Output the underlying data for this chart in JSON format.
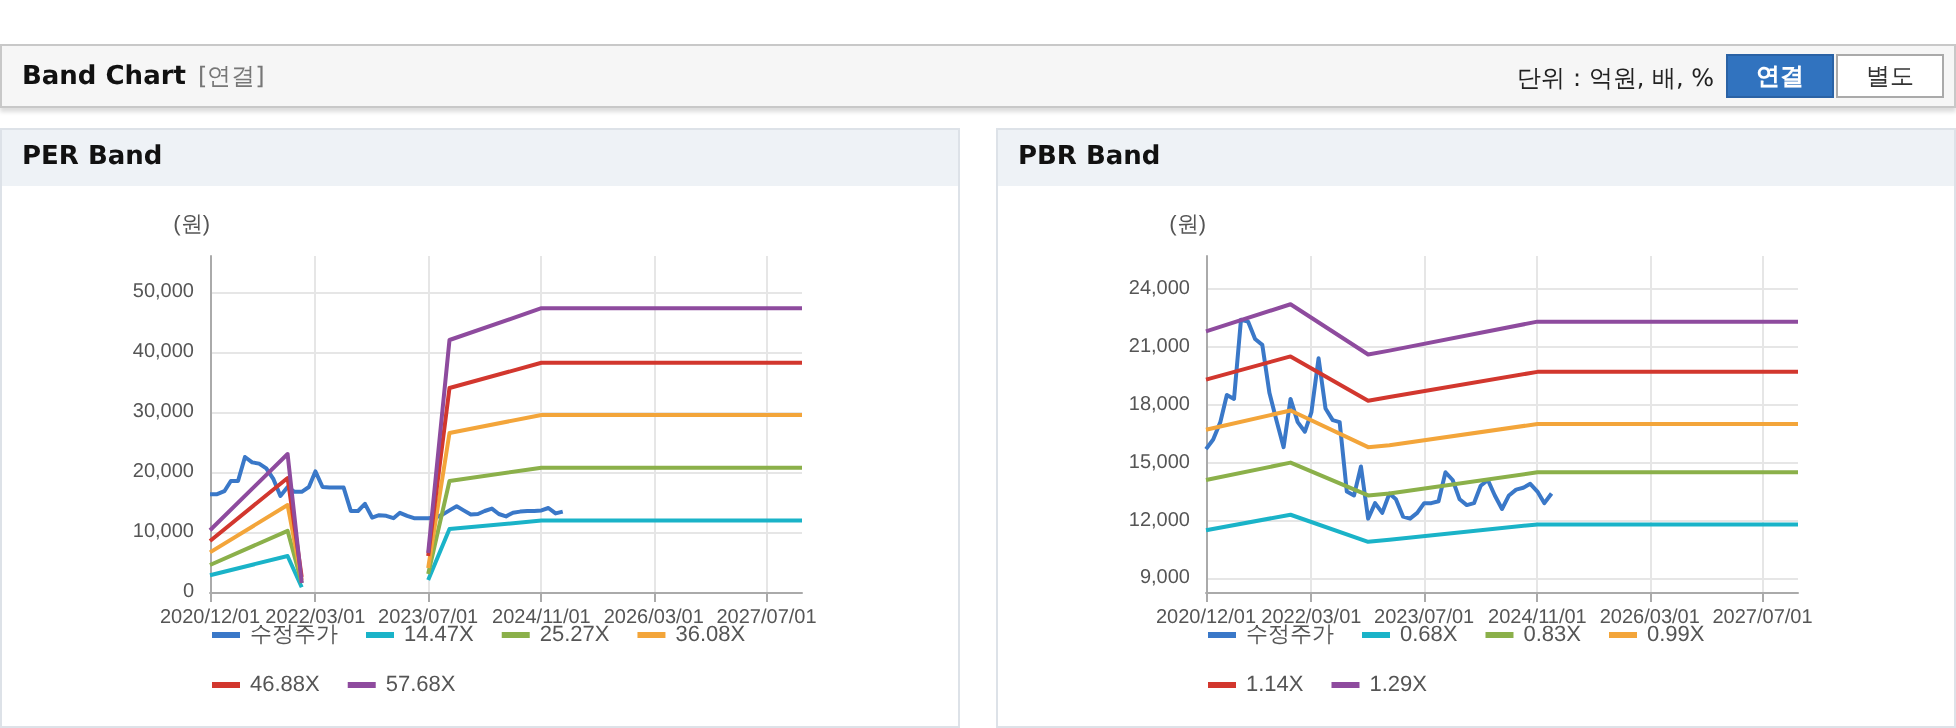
{
  "chart_data": [
    {
      "type": "other",
      "title": "Band Chart",
      "subtitle": "[연결]",
      "annotations": [
        "단위 : 억원, 배, %",
        "연결",
        "별도"
      ]
    },
    {
      "type": "line",
      "title": "PER Band",
      "ylabel": "(원)",
      "xlim": [
        "2020-12-01",
        "2027-12-01"
      ],
      "xticks": [
        {
          "value": "2020-12-01",
          "label": "2020/12/01"
        },
        {
          "value": "2022-03-01",
          "label": "2022/03/01"
        },
        {
          "value": "2023-07-01",
          "label": "2023/07/01"
        },
        {
          "value": "2024-11-01",
          "label": "2024/11/01"
        },
        {
          "value": "2026-03-01",
          "label": "2026/03/01"
        },
        {
          "value": "2027-07-01",
          "label": "2027/07/01"
        }
      ],
      "ylim": [
        0,
        56000
      ],
      "yticks": [
        {
          "value": 0,
          "label": "0"
        },
        {
          "value": 10000,
          "label": "10,000"
        },
        {
          "value": 20000,
          "label": "20,000"
        },
        {
          "value": 30000,
          "label": "30,000"
        },
        {
          "value": 40000,
          "label": "40,000"
        },
        {
          "value": 50000,
          "label": "50,000"
        }
      ],
      "grid": true,
      "legend": "bottom",
      "marker": "none",
      "series": [
        {
          "name": "수정주가",
          "color": "#3a78c8",
          "x": [
            "2020-12",
            "2021-01",
            "2021-02",
            "2021-03",
            "2021-04",
            "2021-05",
            "2021-06",
            "2021-07",
            "2021-08",
            "2021-09",
            "2021-10",
            "2021-11",
            "2021-12",
            "2022-01",
            "2022-02",
            "2022-03",
            "2022-04",
            "2022-05",
            "2022-06",
            "2022-07",
            "2022-08",
            "2022-09",
            "2022-10",
            "2022-11",
            "2022-12",
            "2023-01",
            "2023-02",
            "2023-03",
            "2023-04",
            "2023-05",
            "2023-06",
            "2023-07",
            "2023-08",
            "2023-09",
            "2023-10",
            "2023-11",
            "2023-12",
            "2024-01",
            "2024-02",
            "2024-03",
            "2024-04",
            "2024-05",
            "2024-06",
            "2024-07",
            "2024-08",
            "2024-09",
            "2024-10",
            "2024-11",
            "2024-12",
            "2025-01",
            "2025-02"
          ],
          "values": [
            16300,
            16300,
            16800,
            18500,
            18500,
            22500,
            21600,
            21400,
            20600,
            18800,
            16000,
            17500,
            16700,
            16700,
            17500,
            20100,
            17500,
            17400,
            17400,
            17400,
            13500,
            13500,
            14700,
            12400,
            12800,
            12700,
            12300,
            13200,
            12700,
            12300,
            12300,
            12300,
            12400,
            12900,
            13600,
            14300,
            13600,
            12900,
            13000,
            13500,
            13900,
            13000,
            12600,
            13200,
            13400,
            13500,
            13500,
            13600,
            14000,
            13100,
            13400
          ]
        },
        {
          "name": "14.47X",
          "color": "#1ab3c8",
          "x": [
            "2020-12",
            "2021-11",
            "2022-01",
            "2022-10",
            "2023-07",
            "2023-10",
            "2024-11",
            "2027-12"
          ],
          "values": [
            2800,
            6000,
            800,
            null,
            2000,
            10500,
            11900,
            11900
          ]
        },
        {
          "name": "25.27X",
          "color": "#8bb04a",
          "x": [
            "2020-12",
            "2021-11",
            "2022-01",
            "2022-10",
            "2023-07",
            "2023-10",
            "2024-11",
            "2027-12"
          ],
          "values": [
            4500,
            10200,
            1500,
            null,
            3000,
            18500,
            20700,
            20700
          ]
        },
        {
          "name": "36.08X",
          "color": "#f3a53a",
          "x": [
            "2020-12",
            "2021-11",
            "2022-01",
            "2022-10",
            "2023-07",
            "2023-10",
            "2024-11",
            "2027-12"
          ],
          "values": [
            6600,
            14500,
            2000,
            null,
            4000,
            26500,
            29500,
            29500
          ]
        },
        {
          "name": "46.88X",
          "color": "#d2372e",
          "x": [
            "2020-12",
            "2021-11",
            "2022-01",
            "2022-10",
            "2023-07",
            "2023-10",
            "2024-11",
            "2027-12"
          ],
          "values": [
            8500,
            19000,
            2500,
            null,
            6000,
            34000,
            38200,
            38200
          ]
        },
        {
          "name": "57.68X",
          "color": "#8e4b9e",
          "x": [
            "2020-12",
            "2021-11",
            "2022-01",
            "2022-10",
            "2023-07",
            "2023-10",
            "2024-11",
            "2027-12"
          ],
          "values": [
            10300,
            23000,
            1500,
            null,
            6500,
            42000,
            47300,
            47300
          ]
        }
      ]
    },
    {
      "type": "line",
      "title": "PBR Band",
      "ylabel": "(원)",
      "xlim": [
        "2020-12-01",
        "2027-12-01"
      ],
      "xticks": [
        {
          "value": "2020-12-01",
          "label": "2020/12/01"
        },
        {
          "value": "2022-03-01",
          "label": "2022/03/01"
        },
        {
          "value": "2023-07-01",
          "label": "2023/07/01"
        },
        {
          "value": "2024-11-01",
          "label": "2024/11/01"
        },
        {
          "value": "2026-03-01",
          "label": "2026/03/01"
        },
        {
          "value": "2027-07-01",
          "label": "2027/07/01"
        }
      ],
      "ylim": [
        8300,
        25700
      ],
      "yticks": [
        {
          "value": 9000,
          "label": "9,000"
        },
        {
          "value": 12000,
          "label": "12,000"
        },
        {
          "value": 15000,
          "label": "15,000"
        },
        {
          "value": 18000,
          "label": "18,000"
        },
        {
          "value": 21000,
          "label": "21,000"
        },
        {
          "value": 24000,
          "label": "24,000"
        }
      ],
      "grid": true,
      "legend": "bottom",
      "marker": "none",
      "series": [
        {
          "name": "수정주가",
          "color": "#3a78c8",
          "x": [
            "2020-12",
            "2021-01",
            "2021-02",
            "2021-03",
            "2021-04",
            "2021-05",
            "2021-06",
            "2021-07",
            "2021-08",
            "2021-09",
            "2021-10",
            "2021-11",
            "2021-12",
            "2022-01",
            "2022-02",
            "2022-03",
            "2022-04",
            "2022-05",
            "2022-06",
            "2022-07",
            "2022-08",
            "2022-09",
            "2022-10",
            "2022-11",
            "2022-12",
            "2023-01",
            "2023-02",
            "2023-03",
            "2023-04",
            "2023-05",
            "2023-06",
            "2023-07",
            "2023-08",
            "2023-09",
            "2023-10",
            "2023-11",
            "2023-12",
            "2024-01",
            "2024-02",
            "2024-03",
            "2024-04",
            "2024-05",
            "2024-06",
            "2024-07",
            "2024-08",
            "2024-09",
            "2024-10",
            "2024-11",
            "2024-12",
            "2025-01"
          ],
          "values": [
            15700,
            16200,
            17100,
            18500,
            18300,
            22400,
            22300,
            21400,
            21100,
            18600,
            17200,
            15800,
            18300,
            17100,
            16600,
            17600,
            20400,
            17800,
            17200,
            17100,
            13500,
            13300,
            14800,
            12100,
            12900,
            12400,
            13400,
            13100,
            12200,
            12100,
            12400,
            12900,
            12900,
            13000,
            14500,
            14100,
            13100,
            12800,
            12900,
            13800,
            14100,
            13300,
            12600,
            13300,
            13600,
            13700,
            13900,
            13500,
            12900,
            13400
          ]
        },
        {
          "name": "0.68X",
          "color": "#1ab3c8",
          "x": [
            "2020-12",
            "2021-12",
            "2022-11",
            "2023-02",
            "2024-11",
            "2027-12"
          ],
          "values": [
            11500,
            12300,
            10900,
            11000,
            11800,
            11800
          ]
        },
        {
          "name": "0.83X",
          "color": "#8bb04a",
          "x": [
            "2020-12",
            "2021-12",
            "2022-11",
            "2023-02",
            "2024-11",
            "2027-12"
          ],
          "values": [
            14100,
            15000,
            13300,
            13400,
            14500,
            14500
          ]
        },
        {
          "name": "0.99X",
          "color": "#f3a53a",
          "x": [
            "2020-12",
            "2021-12",
            "2022-11",
            "2023-02",
            "2024-11",
            "2027-12"
          ],
          "values": [
            16700,
            17700,
            15800,
            15900,
            17000,
            17000
          ]
        },
        {
          "name": "1.14X",
          "color": "#d2372e",
          "x": [
            "2020-12",
            "2021-12",
            "2022-11",
            "2023-02",
            "2024-11",
            "2027-12"
          ],
          "values": [
            19300,
            20500,
            18200,
            18400,
            19700,
            19700
          ]
        },
        {
          "name": "1.29X",
          "color": "#8e4b9e",
          "x": [
            "2020-12",
            "2021-12",
            "2022-11",
            "2023-02",
            "2024-11",
            "2027-12"
          ],
          "values": [
            21800,
            23200,
            20600,
            20800,
            22300,
            22300
          ]
        }
      ]
    }
  ]
}
